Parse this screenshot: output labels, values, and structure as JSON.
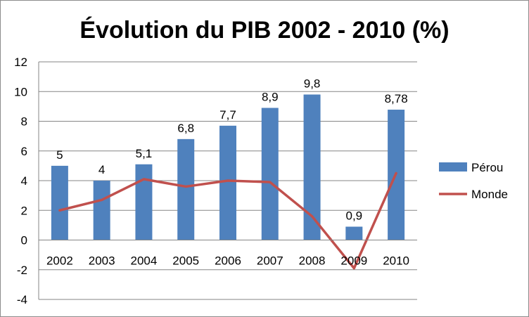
{
  "chart_data": {
    "type": "bar",
    "title": "Évolution du PIB 2002 - 2010 (%)",
    "categories": [
      "2002",
      "2003",
      "2004",
      "2005",
      "2006",
      "2007",
      "2008",
      "2009",
      "2010"
    ],
    "ylim": [
      -4,
      12
    ],
    "yticks": [
      -4,
      -2,
      0,
      2,
      4,
      6,
      8,
      10,
      12
    ],
    "grid": true,
    "legend_position": "right",
    "series": [
      {
        "name": "Pérou",
        "type": "bar",
        "color": "#4F81BD",
        "values": [
          5,
          4,
          5.1,
          6.8,
          7.7,
          8.9,
          9.8,
          0.9,
          8.78
        ],
        "data_labels": [
          "5",
          "4",
          "5,1",
          "6,8",
          "7,7",
          "8,9",
          "9,8",
          "0,9",
          "8,78"
        ]
      },
      {
        "name": "Monde",
        "type": "line",
        "color": "#C0504D",
        "values": [
          2.0,
          2.7,
          4.1,
          3.6,
          4.0,
          3.9,
          1.6,
          -1.9,
          4.5
        ]
      }
    ]
  }
}
